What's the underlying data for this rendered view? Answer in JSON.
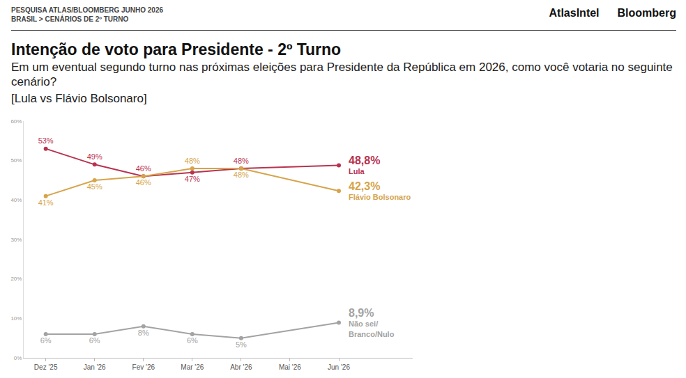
{
  "header": {
    "source": "PESQUISA ATLAS/BLOOMBERG JUNHO 2026",
    "breadcrumb": "BRASIL > CENÁRIOS DE 2º TURNO",
    "logos": [
      "AtlasIntel",
      "Bloomberg"
    ]
  },
  "chart_data": {
    "type": "line",
    "title": "Intenção de voto para Presidente - 2º Turno",
    "subtitle": "Em um eventual segundo turno nas próximas eleições para Presidente da República em 2026, como você votaria no seguinte cenário?",
    "scenario": "[Lula vs Flávio Bolsonaro]",
    "categories": [
      "Dez '25",
      "Jan '26",
      "Fev '26",
      "Mar '26",
      "Abr '26",
      "Mai '26",
      "Jun '26"
    ],
    "series": [
      {
        "name": "Lula",
        "color": "#b8334f",
        "values": [
          53,
          49,
          46,
          47,
          48,
          null,
          48.8
        ],
        "value_labels": [
          "53%",
          "49%",
          "46%",
          "47%",
          "48%",
          null,
          "48,8%"
        ]
      },
      {
        "name": "Flávio Bolsonaro",
        "color": "#d6a44a",
        "values": [
          41,
          45,
          46,
          48,
          48,
          null,
          42.3
        ],
        "value_labels": [
          "41%",
          "45%",
          "46%",
          "48%",
          "48%",
          null,
          "42,3%"
        ]
      },
      {
        "name": "Não sei/ Branco/Nulo",
        "color": "#a3a3a3",
        "values": [
          6,
          6,
          8,
          6,
          5,
          null,
          8.9
        ],
        "value_labels": [
          "6%",
          "6%",
          "8%",
          "6%",
          "5%",
          null,
          "8,9%"
        ]
      }
    ],
    "ylim": [
      0,
      60
    ],
    "yticks": [
      {
        "value": 0,
        "label": "0%"
      },
      {
        "value": 10,
        "label": "10%"
      },
      {
        "value": 20,
        "label": "20%"
      },
      {
        "value": 30,
        "label": "30%"
      },
      {
        "value": 40,
        "label": "40%"
      },
      {
        "value": 50,
        "label": "50%"
      },
      {
        "value": 60,
        "label": "60%"
      }
    ],
    "grid": false,
    "data_labels": true,
    "marker": "circle",
    "line_style": "solid"
  }
}
